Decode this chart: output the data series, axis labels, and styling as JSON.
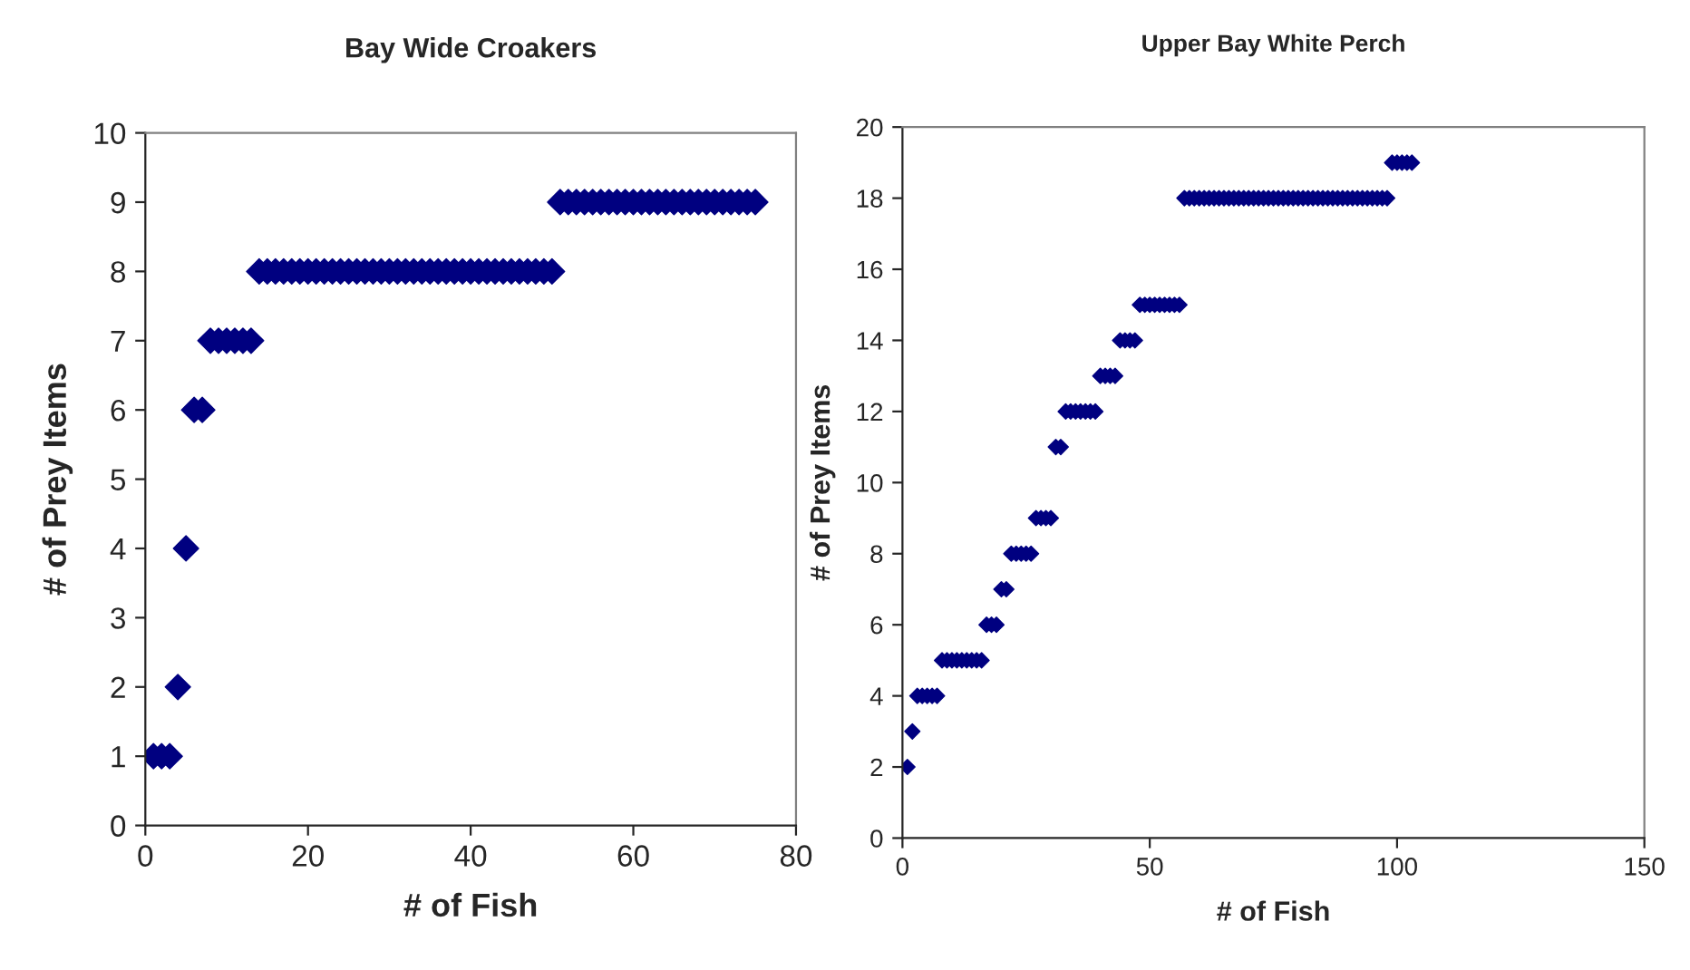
{
  "chart_data": [
    {
      "type": "scatter",
      "title": "Bay Wide Croakers",
      "xlabel": "# of Fish",
      "ylabel": "# of Prey Items",
      "marker": "diamond",
      "grid": false,
      "legend": false,
      "xlim": [
        0,
        80
      ],
      "xticks": [
        0,
        20,
        40,
        60,
        80
      ],
      "ylim": [
        0,
        10
      ],
      "yticks": [
        0,
        1,
        2,
        3,
        4,
        5,
        6,
        7,
        8,
        9,
        10
      ],
      "series": [
        {
          "color": "#000080",
          "x": [
            1,
            2,
            3,
            4,
            5,
            6,
            7,
            8,
            9,
            10,
            11,
            12,
            13,
            14,
            15,
            16,
            17,
            18,
            19,
            20,
            21,
            22,
            23,
            24,
            25,
            26,
            27,
            28,
            29,
            30,
            31,
            32,
            33,
            34,
            35,
            36,
            37,
            38,
            39,
            40,
            41,
            42,
            43,
            44,
            45,
            46,
            47,
            48,
            49,
            50,
            51,
            52,
            53,
            54,
            55,
            56,
            57,
            58,
            59,
            60,
            61,
            62,
            63,
            64,
            65,
            66,
            67,
            68,
            69,
            70,
            71,
            72,
            73,
            74,
            75
          ],
          "values": [
            1,
            1,
            1,
            2,
            4,
            6,
            6,
            7,
            7,
            7,
            7,
            7,
            7,
            8,
            8,
            8,
            8,
            8,
            8,
            8,
            8,
            8,
            8,
            8,
            8,
            8,
            8,
            8,
            8,
            8,
            8,
            8,
            8,
            8,
            8,
            8,
            8,
            8,
            8,
            8,
            8,
            8,
            8,
            8,
            8,
            8,
            8,
            8,
            8,
            8,
            9,
            9,
            9,
            9,
            9,
            9,
            9,
            9,
            9,
            9,
            9,
            9,
            9,
            9,
            9,
            9,
            9,
            9,
            9,
            9,
            9,
            9,
            9,
            9,
            9
          ]
        }
      ]
    },
    {
      "type": "scatter",
      "title": "Upper Bay White Perch",
      "xlabel": "# of Fish",
      "ylabel": "# of Prey Items",
      "marker": "diamond",
      "grid": false,
      "legend": false,
      "xlim": [
        0,
        150
      ],
      "xticks": [
        0,
        50,
        100,
        150
      ],
      "ylim": [
        0,
        20
      ],
      "yticks": [
        0,
        2,
        4,
        6,
        8,
        10,
        12,
        14,
        16,
        18,
        20
      ],
      "series": [
        {
          "color": "#000080",
          "x": [
            1,
            2,
            3,
            4,
            5,
            6,
            7,
            8,
            9,
            10,
            11,
            12,
            13,
            14,
            15,
            16,
            17,
            18,
            19,
            20,
            21,
            22,
            23,
            24,
            25,
            26,
            27,
            28,
            29,
            30,
            31,
            32,
            33,
            34,
            35,
            36,
            37,
            38,
            39,
            40,
            41,
            42,
            43,
            44,
            45,
            46,
            47,
            48,
            49,
            50,
            51,
            52,
            53,
            54,
            55,
            56,
            57,
            58,
            59,
            60,
            61,
            62,
            63,
            64,
            65,
            66,
            67,
            68,
            69,
            70,
            71,
            72,
            73,
            74,
            75,
            76,
            77,
            78,
            79,
            80,
            81,
            82,
            83,
            84,
            85,
            86,
            87,
            88,
            89,
            90,
            91,
            92,
            93,
            94,
            95,
            96,
            97,
            98,
            99,
            100,
            101,
            102,
            103
          ],
          "values": [
            2,
            3,
            4,
            4,
            4,
            4,
            4,
            5,
            5,
            5,
            5,
            5,
            5,
            5,
            5,
            5,
            6,
            6,
            6,
            7,
            7,
            8,
            8,
            8,
            8,
            8,
            9,
            9,
            9,
            9,
            11,
            11,
            12,
            12,
            12,
            12,
            12,
            12,
            12,
            13,
            13,
            13,
            13,
            14,
            14,
            14,
            14,
            15,
            15,
            15,
            15,
            15,
            15,
            15,
            15,
            15,
            18,
            18,
            18,
            18,
            18,
            18,
            18,
            18,
            18,
            18,
            18,
            18,
            18,
            18,
            18,
            18,
            18,
            18,
            18,
            18,
            18,
            18,
            18,
            18,
            18,
            18,
            18,
            18,
            18,
            18,
            18,
            18,
            18,
            18,
            18,
            18,
            18,
            18,
            18,
            18,
            18,
            18,
            19,
            19,
            19,
            19,
            19
          ]
        }
      ]
    }
  ]
}
